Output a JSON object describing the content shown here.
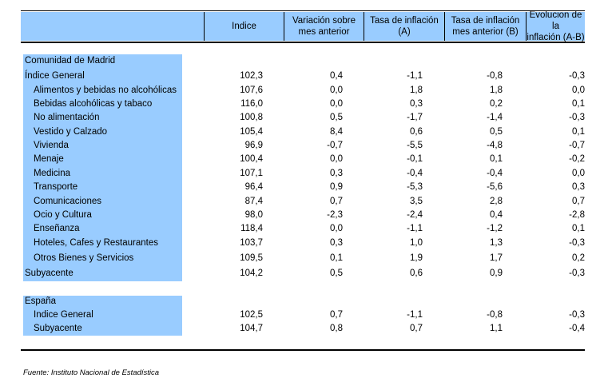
{
  "header": {
    "columns": [
      "",
      "Indice",
      "Variación sobre\nmes anterior",
      "Tasa de inflación\n(A)",
      "Tasa de inflación\nmes anterior (B)",
      "Evolucion de la\ninflación (A-B)"
    ]
  },
  "madrid": {
    "title": "Comunidad de Madrid",
    "rows": [
      {
        "label": "Índice General",
        "indent": false,
        "values": [
          "102,3",
          "0,4",
          "-1,1",
          "-0,8",
          "-0,3"
        ]
      },
      {
        "label": "Alimentos y bebidas no alcohólicas",
        "indent": true,
        "values": [
          "107,6",
          "0,0",
          "1,8",
          "1,8",
          "0,0"
        ]
      },
      {
        "label": "Bebidas alcohólicas y tabaco",
        "indent": true,
        "values": [
          "116,0",
          "0,0",
          "0,3",
          "0,2",
          "0,1"
        ]
      },
      {
        "label": "No alimentación",
        "indent": true,
        "values": [
          "100,8",
          "0,5",
          "-1,7",
          "-1,4",
          "-0,3"
        ]
      },
      {
        "label": "Vestido y Calzado",
        "indent": true,
        "values": [
          "105,4",
          "8,4",
          "0,6",
          "0,5",
          "0,1"
        ]
      },
      {
        "label": "Vivienda",
        "indent": true,
        "values": [
          "96,9",
          "-0,7",
          "-5,5",
          "-4,8",
          "-0,7"
        ]
      },
      {
        "label": "Menaje",
        "indent": true,
        "values": [
          "100,4",
          "0,0",
          "-0,1",
          "0,1",
          "-0,2"
        ]
      },
      {
        "label": "Medicina",
        "indent": true,
        "values": [
          "107,1",
          "0,3",
          "-0,4",
          "-0,4",
          "0,0"
        ]
      },
      {
        "label": "Transporte",
        "indent": true,
        "values": [
          "96,4",
          "0,9",
          "-5,3",
          "-5,6",
          "0,3"
        ]
      },
      {
        "label": "Comunicaciones",
        "indent": true,
        "values": [
          "87,4",
          "0,7",
          "3,5",
          "2,8",
          "0,7"
        ]
      },
      {
        "label": "Ocio y Cultura",
        "indent": true,
        "values": [
          "98,0",
          "-2,3",
          "-2,4",
          "0,4",
          "-2,8"
        ]
      },
      {
        "label": "Enseñanza",
        "indent": true,
        "values": [
          "118,4",
          "0,0",
          "-1,1",
          "-1,2",
          "0,1"
        ]
      },
      {
        "label": "Hoteles, Cafes y Restaurantes",
        "indent": true,
        "values": [
          "103,7",
          "0,3",
          "1,0",
          "1,3",
          "-0,3"
        ]
      },
      {
        "label": "Otros Bienes y Servicios",
        "indent": true,
        "values": [
          "109,5",
          "0,1",
          "1,9",
          "1,7",
          "0,2"
        ]
      },
      {
        "label": "Subyacente",
        "indent": false,
        "values": [
          "104,2",
          "0,5",
          "0,6",
          "0,9",
          "-0,3"
        ]
      }
    ]
  },
  "spain": {
    "title": "España",
    "rows": [
      {
        "label": "Indice General",
        "indent": true,
        "values": [
          "102,5",
          "0,7",
          "-1,1",
          "-0,8",
          "-0,3"
        ]
      },
      {
        "label": "Subyacente",
        "indent": true,
        "values": [
          "104,7",
          "0,8",
          "0,7",
          "1,1",
          "-0,4"
        ]
      }
    ]
  },
  "source": "Fuente: Instituto Nacional de Estadística"
}
